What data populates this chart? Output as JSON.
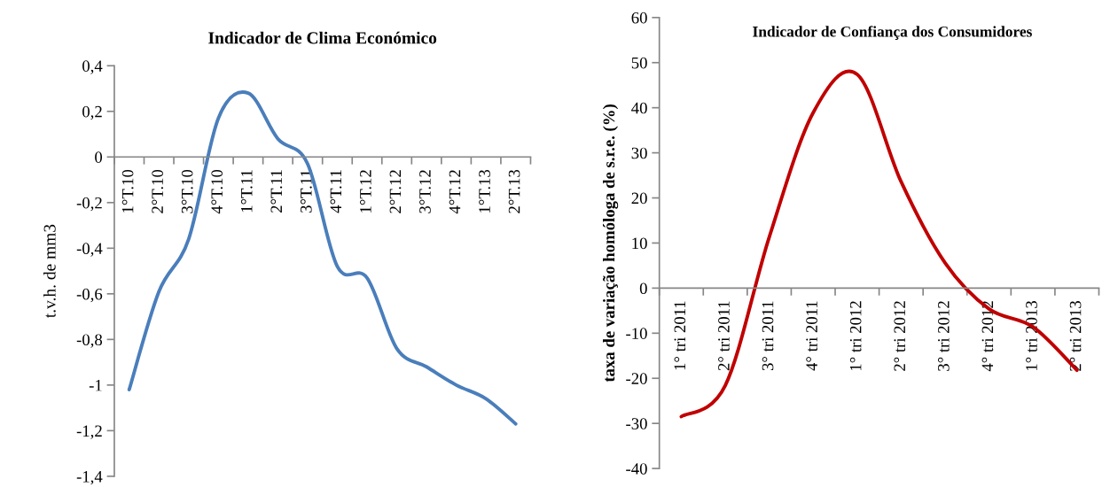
{
  "chart_data": [
    {
      "type": "line",
      "title": "Indicador de Clima Económico",
      "ylabel": "t.v.h. de mm3",
      "categories": [
        "1°T.10",
        "2°T.10",
        "3°T.10",
        "4°T.10",
        "1°T.11",
        "2°T.11",
        "3°T.11",
        "4°T.11",
        "1°T.12",
        "2°T.12",
        "3°T.12",
        "4°T.12",
        "1°T.13",
        "2°T.13"
      ],
      "series": [
        {
          "color": "#4a7ebb",
          "values": [
            -1.02,
            -0.59,
            -0.36,
            0.17,
            0.28,
            0.08,
            -0.03,
            -0.48,
            -0.53,
            -0.84,
            -0.92,
            -1.0,
            -1.06,
            -1.17
          ]
        }
      ],
      "ylim": [
        -1.4,
        0.4
      ],
      "yticks": [
        {
          "value": -1.4,
          "label": "-1,4"
        },
        {
          "value": -1.2,
          "label": "-1,2"
        },
        {
          "value": -1.0,
          "label": "-1"
        },
        {
          "value": -0.8,
          "label": "-0,8"
        },
        {
          "value": -0.6,
          "label": "-0,6"
        },
        {
          "value": -0.4,
          "label": "-0,4"
        },
        {
          "value": -0.2,
          "label": "-0,2"
        },
        {
          "value": 0,
          "label": "0"
        },
        {
          "value": 0.2,
          "label": "0,2"
        },
        {
          "value": 0.4,
          "label": "0,4"
        }
      ]
    },
    {
      "type": "line",
      "title": "Indicador de Confiança dos Consumidores",
      "ylabel": "taxa de variação homóloga de s.r.e. (%)",
      "categories": [
        "1° tri 2011",
        "2° tri 2011",
        "3° tri 2011",
        "4° tri 2011",
        "1° tri 2012",
        "2° tri 2012",
        "3° tri 2012",
        "4° tri 2012",
        "1° tri 2013",
        "2° tri 2013"
      ],
      "series": [
        {
          "color": "#c00000",
          "values": [
            -28.5,
            -21.6,
            11.3,
            38.9,
            47.4,
            23.6,
            5.6,
            -4.6,
            -8.6,
            -18.2
          ]
        }
      ],
      "ylim": [
        -40,
        60
      ],
      "yticks": [
        -40,
        -30,
        -20,
        -10,
        0,
        10,
        20,
        30,
        40,
        50,
        60
      ]
    }
  ]
}
